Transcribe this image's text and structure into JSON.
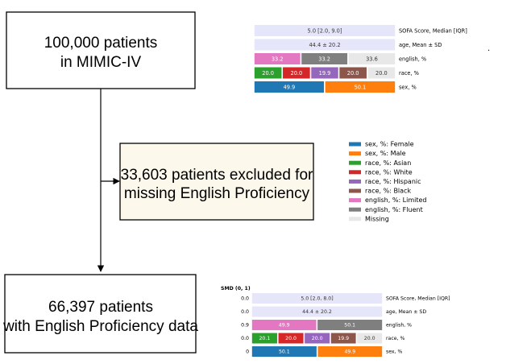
{
  "flow": {
    "box1": {
      "lines": [
        "100,000 patients",
        "in MIMIC-IV"
      ]
    },
    "box2": {
      "lines": [
        "33,603 patients excluded for",
        "missing English Proficiency"
      ],
      "fill": "#fcf8ec"
    },
    "box3": {
      "lines": [
        "66,397 patients",
        "with English Proficiency data"
      ]
    }
  },
  "colors": {
    "Female": "#1f77b4",
    "Male": "#ff7f0e",
    "Asian": "#2ca02c",
    "White": "#d62728",
    "Hispanic": "#9467bd",
    "Black": "#8c564b",
    "Limited": "#e377c2",
    "Fluent": "#7f7f7f",
    "Missing": "#e8e8e8",
    "Summary": "#e6e6fa"
  },
  "legend": [
    {
      "label": "sex, %: Female",
      "color": "#1f77b4"
    },
    {
      "label": "sex, %: Male",
      "color": "#ff7f0e"
    },
    {
      "label": "race, %: Asian",
      "color": "#2ca02c"
    },
    {
      "label": "race, %: White",
      "color": "#d62728"
    },
    {
      "label": "race, %: Hispanic",
      "color": "#9467bd"
    },
    {
      "label": "race, %: Black",
      "color": "#8c564b"
    },
    {
      "label": "english, %: Limited",
      "color": "#e377c2"
    },
    {
      "label": "english, %: Fluent",
      "color": "#7f7f7f"
    },
    {
      "label": "Missing",
      "color": "#e8e8e8"
    }
  ],
  "dot": ".",
  "chart_data": [
    {
      "type": "bar",
      "rows": [
        {
          "name": "SOFA Score, Median [IQR]",
          "segments": [
            {
              "value": 100,
              "text": "5.0 [2.0, 9.0]",
              "color": "#e6e6fa"
            }
          ]
        },
        {
          "name": "age, Mean ± SD",
          "segments": [
            {
              "value": 100,
              "text": "44.4 ± 20.2",
              "color": "#e6e6fa"
            }
          ]
        },
        {
          "name": "english, %",
          "segments": [
            {
              "value": 33.2,
              "text": "33.2",
              "color": "#e377c2"
            },
            {
              "value": 33.2,
              "text": "33.2",
              "color": "#7f7f7f"
            },
            {
              "value": 33.6,
              "text": "33.6",
              "color": "#e8e8e8"
            }
          ]
        },
        {
          "name": "race, %",
          "segments": [
            {
              "value": 20.0,
              "text": "20.0",
              "color": "#2ca02c"
            },
            {
              "value": 20.0,
              "text": "20.0",
              "color": "#d62728"
            },
            {
              "value": 19.9,
              "text": "19.9",
              "color": "#9467bd"
            },
            {
              "value": 20.0,
              "text": "20.0",
              "color": "#8c564b"
            },
            {
              "value": 20.0,
              "text": "20.0",
              "color": "#e8e8e8"
            }
          ]
        },
        {
          "name": "sex, %",
          "segments": [
            {
              "value": 49.9,
              "text": "49.9",
              "color": "#1f77b4"
            },
            {
              "value": 50.1,
              "text": "50.1",
              "color": "#ff7f0e"
            }
          ]
        }
      ]
    },
    {
      "type": "bar",
      "smd_header": "SMD (0, 1)",
      "rows": [
        {
          "name": "SOFA Score, Median [IQR]",
          "smd": "0.0",
          "segments": [
            {
              "value": 100,
              "text": "5.0 [2.0, 8.0]",
              "color": "#e6e6fa"
            }
          ]
        },
        {
          "name": "age, Mean ± SD",
          "smd": "0.0",
          "segments": [
            {
              "value": 100,
              "text": "44.4 ± 20.2",
              "color": "#e6e6fa"
            }
          ]
        },
        {
          "name": "english, %",
          "smd": "0.9",
          "segments": [
            {
              "value": 49.9,
              "text": "49.9",
              "color": "#e377c2"
            },
            {
              "value": 50.1,
              "text": "50.1",
              "color": "#7f7f7f"
            }
          ]
        },
        {
          "name": "race, %",
          "smd": "0.0",
          "segments": [
            {
              "value": 20.1,
              "text": "20.1",
              "color": "#2ca02c"
            },
            {
              "value": 20.0,
              "text": "20.0",
              "color": "#d62728"
            },
            {
              "value": 20.0,
              "text": "20.0",
              "color": "#9467bd"
            },
            {
              "value": 19.9,
              "text": "19.9",
              "color": "#8c564b"
            },
            {
              "value": 20.0,
              "text": "20.0",
              "color": "#e8e8e8"
            }
          ]
        },
        {
          "name": "sex, %",
          "smd": "0",
          "segments": [
            {
              "value": 50.1,
              "text": "50.1",
              "color": "#1f77b4"
            },
            {
              "value": 49.9,
              "text": "49.9",
              "color": "#ff7f0e"
            }
          ]
        }
      ]
    }
  ]
}
